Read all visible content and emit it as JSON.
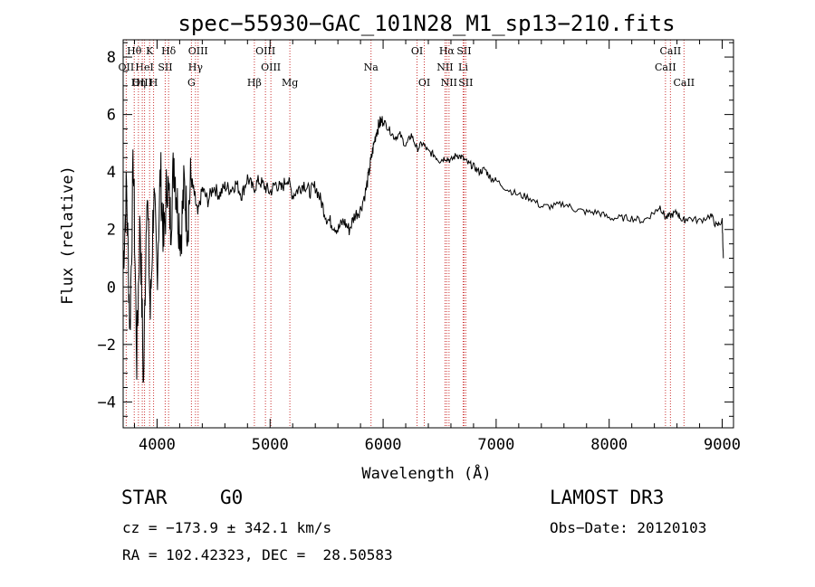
{
  "chart_data": {
    "type": "line",
    "title": "spec−55930−GAC_101N28_M1_sp13−210.fits",
    "xlabel": "Wavelength (Å)",
    "ylabel": "Flux (relative)",
    "xlim": [
      3700,
      9100
    ],
    "ylim": [
      -4.9,
      8.6
    ],
    "xticks": [
      4000,
      5000,
      6000,
      7000,
      8000,
      9000
    ],
    "yticks": [
      -4,
      -2,
      0,
      2,
      4,
      6,
      8
    ],
    "series": [
      {
        "name": "spectrum",
        "x": [
          3700,
          3730,
          3760,
          3790,
          3820,
          3850,
          3880,
          3910,
          3940,
          3970,
          4000,
          4030,
          4060,
          4090,
          4120,
          4150,
          4180,
          4210,
          4240,
          4270,
          4300,
          4330,
          4360,
          4400,
          4450,
          4500,
          4550,
          4600,
          4650,
          4700,
          4750,
          4800,
          4850,
          4900,
          4950,
          5000,
          5050,
          5100,
          5150,
          5200,
          5250,
          5300,
          5350,
          5400,
          5450,
          5500,
          5550,
          5600,
          5650,
          5700,
          5750,
          5800,
          5850,
          5880,
          5910,
          5940,
          5970,
          6000,
          6050,
          6100,
          6150,
          6200,
          6250,
          6300,
          6350,
          6400,
          6450,
          6500,
          6550,
          6600,
          6650,
          6700,
          6750,
          6800,
          6850,
          6900,
          6950,
          7000,
          7100,
          7200,
          7300,
          7400,
          7500,
          7600,
          7700,
          7800,
          7900,
          8000,
          8100,
          8200,
          8300,
          8400,
          8450,
          8500,
          8550,
          8600,
          8650,
          8700,
          8800,
          8900,
          8950,
          9000,
          9010
        ],
        "y": [
          0.8,
          3.5,
          -1.5,
          4.5,
          -2.5,
          2.5,
          -3.5,
          3.8,
          -1.0,
          3.2,
          0.5,
          4.0,
          1.5,
          3.8,
          2.2,
          4.5,
          2.8,
          1.8,
          3.5,
          2.2,
          3.8,
          3.2,
          2.5,
          3.4,
          3.0,
          3.5,
          3.2,
          3.5,
          3.4,
          3.6,
          3.2,
          3.8,
          3.4,
          3.7,
          3.5,
          3.3,
          3.6,
          3.4,
          3.8,
          3.2,
          3.4,
          3.6,
          3.3,
          3.5,
          3.0,
          2.4,
          2.2,
          2.0,
          2.3,
          2.0,
          2.5,
          2.7,
          3.4,
          4.1,
          4.8,
          5.4,
          5.7,
          5.8,
          5.5,
          5.2,
          5.3,
          4.9,
          5.3,
          4.8,
          5.0,
          4.7,
          4.6,
          4.4,
          4.5,
          4.4,
          4.6,
          4.5,
          4.3,
          4.2,
          4.0,
          4.1,
          3.8,
          3.7,
          3.4,
          3.2,
          3.1,
          2.8,
          2.8,
          2.9,
          2.7,
          2.6,
          2.6,
          2.4,
          2.4,
          2.4,
          2.3,
          2.6,
          2.8,
          2.4,
          2.5,
          2.6,
          2.3,
          2.4,
          2.3,
          2.5,
          2.1,
          2.3,
          1.0
        ]
      }
    ],
    "lines": [
      {
        "name": "Hθ",
        "x": 3798
      },
      {
        "name": "K",
        "x": 3934
      },
      {
        "name": "Hδ",
        "x": 4102
      },
      {
        "name": "OIII",
        "x": 4363
      },
      {
        "name": "OIII",
        "x": 4959
      },
      {
        "name": "OI",
        "x": 6300
      },
      {
        "name": "Hα",
        "x": 6563
      },
      {
        "name": "SII",
        "x": 6716
      },
      {
        "name": "CaII",
        "x": 8542
      },
      {
        "name": "OII",
        "x": 3727
      },
      {
        "name": "HeI",
        "x": 3889
      },
      {
        "name": "SII",
        "x": 4072
      },
      {
        "name": "Hγ",
        "x": 4340
      },
      {
        "name": "OIII",
        "x": 5007
      },
      {
        "name": "Na",
        "x": 5893
      },
      {
        "name": "NII",
        "x": 6548
      },
      {
        "name": "Li",
        "x": 6708
      },
      {
        "name": "CaII",
        "x": 8498
      },
      {
        "name": "OIII",
        "x": 3869
      },
      {
        "name": "Hη",
        "x": 3835
      },
      {
        "name": "H",
        "x": 3969
      },
      {
        "name": "G",
        "x": 4304
      },
      {
        "name": "Hβ",
        "x": 4861
      },
      {
        "name": "Mg",
        "x": 5175
      },
      {
        "name": "OI",
        "x": 6364
      },
      {
        "name": "NII",
        "x": 6583
      },
      {
        "name": "SII",
        "x": 6731
      },
      {
        "name": "CaII",
        "x": 8662
      }
    ]
  },
  "info": {
    "object_class": "STAR",
    "subclass": "G0",
    "survey": "LAMOST DR3",
    "cz": "cz = −173.9 ± 342.1 km/s",
    "obs_date": "Obs−Date: 20120103",
    "coords": "RA = 102.42323, DEC =  28.50583"
  }
}
